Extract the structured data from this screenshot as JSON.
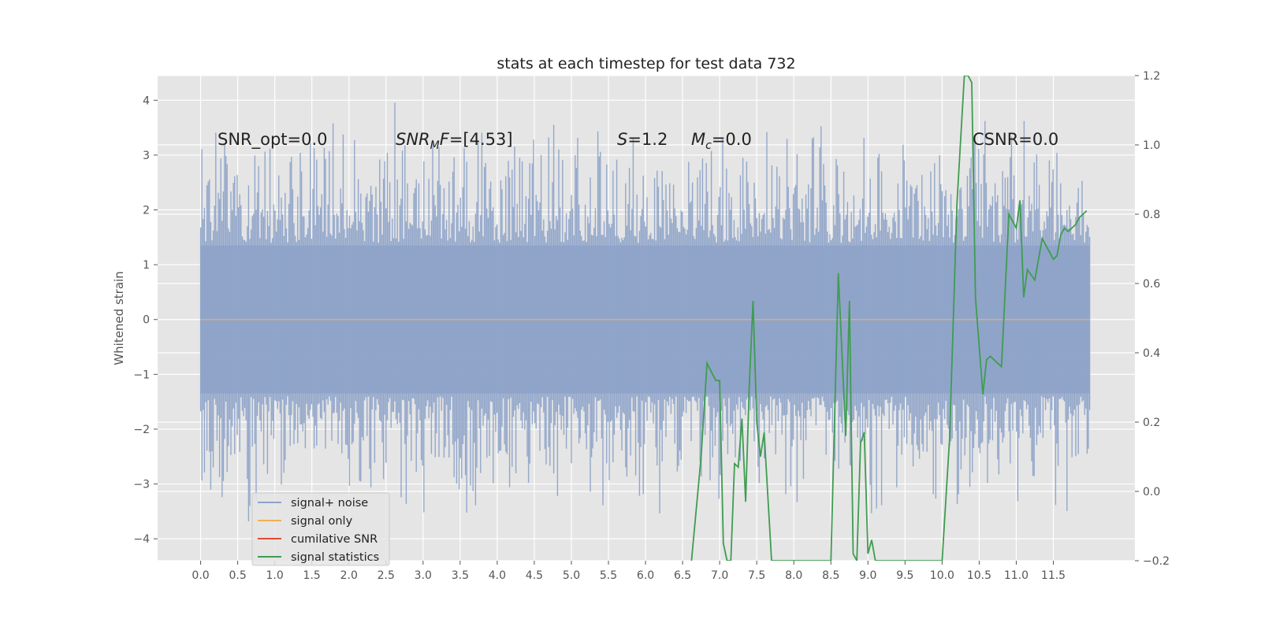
{
  "chart_data": {
    "type": "line",
    "title": "stats at each timestep for test data 732",
    "ylabel": "Whitened strain",
    "xlabel": "",
    "xlim": [
      -0.58,
      12.6
    ],
    "ylim": [
      -4.4,
      4.45
    ],
    "ylim_right": [
      -0.2,
      1.2
    ],
    "grid": true,
    "legend_position": "lower-left",
    "x_ticks": [
      "0.0",
      "0.5",
      "1.0",
      "1.5",
      "2.0",
      "2.5",
      "3.0",
      "3.5",
      "4.0",
      "4.5",
      "5.0",
      "5.5",
      "6.0",
      "6.5",
      "7.0",
      "7.5",
      "8.0",
      "8.5",
      "9.0",
      "9.5",
      "10.0",
      "10.5",
      "11.0",
      "11.5"
    ],
    "y_ticks_left": [
      "4",
      "3",
      "2",
      "1",
      "0",
      "−1",
      "−2",
      "−3",
      "−4"
    ],
    "y_ticks_right": [
      "1.2",
      "1.0",
      "0.8",
      "0.6",
      "0.4",
      "0.2",
      "0.0",
      "−0.2"
    ],
    "annotations": [
      {
        "id": "snr-opt",
        "text": "SNR_opt=0.0"
      },
      {
        "id": "snr-mf-pre",
        "italic": "SNR",
        "sub": "M",
        "mid": "F",
        "text": "=[4.53]"
      },
      {
        "id": "s-val",
        "italic": "S",
        "text": "=1.2"
      },
      {
        "id": "mc-val",
        "italic": "M",
        "sub": "c",
        "text": "=0.0"
      },
      {
        "id": "csnr",
        "text": "CSNR=0.0"
      }
    ],
    "series": [
      {
        "name": "signal+ noise",
        "color": "#8ea3c8",
        "axis": "left",
        "description": "noise band",
        "band_low": -2.0,
        "band_high": 2.0,
        "x_start": 0.0,
        "x_end": 11.99
      },
      {
        "name": "signal only",
        "color": "#f0b050",
        "axis": "left",
        "value": 0.0
      },
      {
        "name": "cumilative SNR",
        "color": "#e24a33",
        "axis": "right",
        "values": []
      },
      {
        "name": "signal statistics",
        "color": "#3f9c50",
        "axis": "right",
        "x": [
          6.62,
          6.75,
          6.83,
          6.9,
          6.95,
          7.0,
          7.05,
          7.1,
          7.15,
          7.2,
          7.25,
          7.3,
          7.35,
          7.4,
          7.45,
          7.5,
          7.55,
          7.6,
          7.7,
          8.5,
          8.6,
          8.7,
          8.75,
          8.8,
          8.85,
          8.9,
          8.95,
          9.0,
          9.05,
          9.1,
          9.5,
          10.0,
          10.1,
          10.2,
          10.3,
          10.35,
          10.4,
          10.45,
          10.55,
          10.6,
          10.65,
          10.7,
          10.75,
          10.8,
          10.9,
          11.0,
          11.05,
          11.1,
          11.15,
          11.25,
          11.35,
          11.45,
          11.5,
          11.55,
          11.6,
          11.65,
          11.7,
          11.75,
          11.8,
          11.85,
          11.9,
          11.95
        ],
        "values": [
          -0.2,
          0.1,
          0.37,
          0.34,
          0.32,
          0.32,
          -0.15,
          -0.2,
          -0.2,
          0.08,
          0.07,
          0.21,
          -0.03,
          0.31,
          0.55,
          0.2,
          0.1,
          0.17,
          -0.2,
          -0.2,
          0.63,
          0.16,
          0.55,
          -0.18,
          -0.2,
          0.14,
          0.17,
          -0.18,
          -0.14,
          -0.2,
          -0.2,
          -0.2,
          0.15,
          0.83,
          1.2,
          1.2,
          1.18,
          0.56,
          0.28,
          0.38,
          0.39,
          0.38,
          0.37,
          0.36,
          0.8,
          0.76,
          0.84,
          0.56,
          0.64,
          0.61,
          0.73,
          0.69,
          0.67,
          0.68,
          0.74,
          0.76,
          0.75,
          0.76,
          0.77,
          0.79,
          0.8,
          0.81
        ]
      }
    ]
  }
}
